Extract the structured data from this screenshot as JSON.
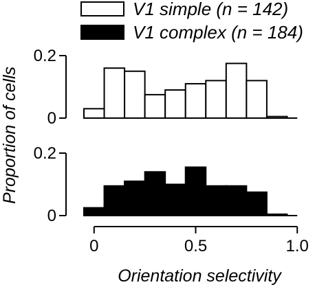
{
  "chart_data": [
    {
      "type": "bar",
      "panel": "top",
      "series_name": "V1 simple (n = 142)",
      "fill": "#ffffff",
      "stroke": "#000000",
      "x_range": [
        -0.05,
        1.0
      ],
      "bin_width": 0.1,
      "bin_starts": [
        -0.05,
        0.05,
        0.15,
        0.25,
        0.35,
        0.45,
        0.55,
        0.65,
        0.75,
        0.85,
        0.95
      ],
      "values": [
        0.03,
        0.16,
        0.15,
        0.075,
        0.09,
        0.11,
        0.12,
        0.175,
        0.12,
        0.005,
        0.0
      ],
      "ylim": [
        0,
        0.2
      ],
      "yticks": [
        0,
        0.2
      ],
      "ytick_labels": [
        "0",
        "0.2"
      ]
    },
    {
      "type": "bar",
      "panel": "bottom",
      "series_name": "V1 complex (n = 184)",
      "fill": "#000000",
      "stroke": "#000000",
      "x_range": [
        -0.05,
        1.0
      ],
      "bin_width": 0.1,
      "bin_starts": [
        -0.05,
        0.05,
        0.15,
        0.25,
        0.35,
        0.45,
        0.55,
        0.65,
        0.75,
        0.85,
        0.95
      ],
      "values": [
        0.025,
        0.095,
        0.11,
        0.14,
        0.1,
        0.155,
        0.095,
        0.095,
        0.075,
        0.004,
        0.0
      ],
      "ylim": [
        0,
        0.2
      ],
      "yticks": [
        0,
        0.2
      ],
      "ytick_labels": [
        "0",
        "0.2"
      ]
    }
  ],
  "legend": {
    "items": [
      {
        "label": "V1 simple (n = 142)",
        "fill": "#ffffff"
      },
      {
        "label": "V1 complex (n = 184)",
        "fill": "#000000"
      }
    ]
  },
  "axes": {
    "xlabel": "Orientation selectivity",
    "ylabel": "Proportion of cells",
    "xticks": [
      0,
      0.5,
      1.0
    ],
    "xtick_labels": [
      "0",
      "0.5",
      "1.0"
    ]
  }
}
